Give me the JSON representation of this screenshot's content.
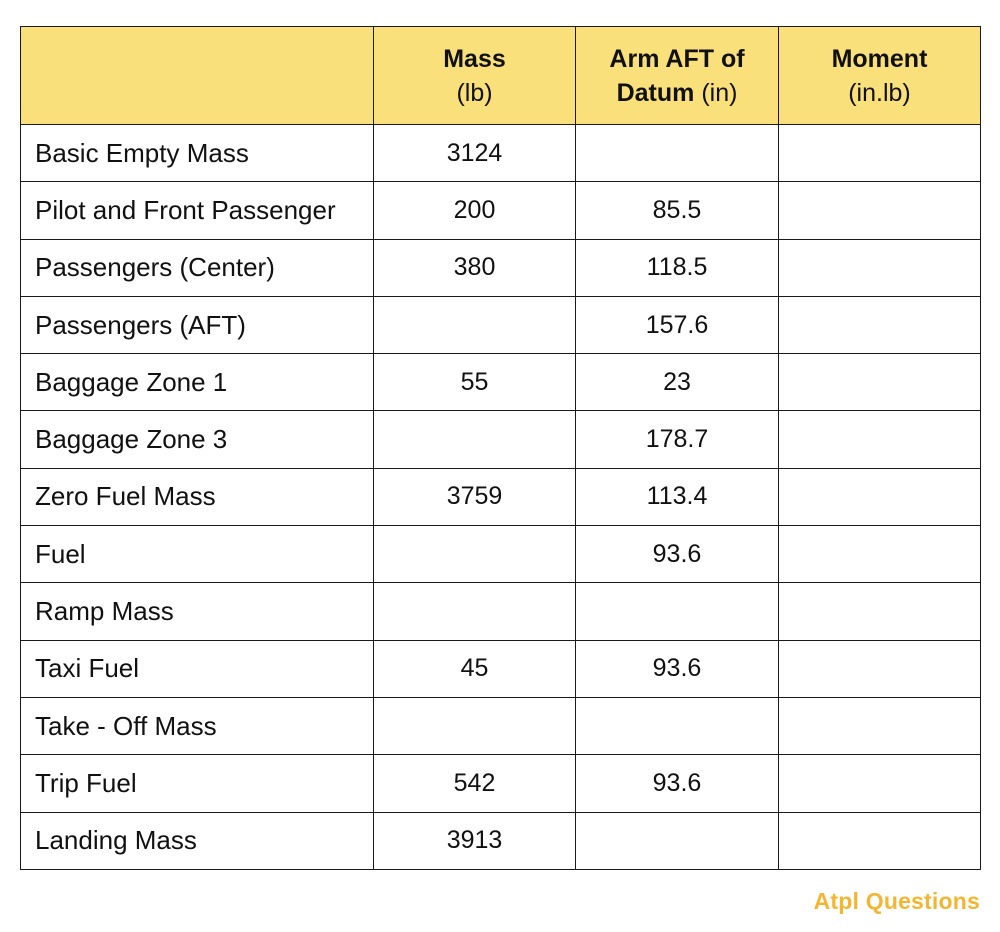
{
  "table": {
    "headers": [
      {
        "bold": "",
        "normal": ""
      },
      {
        "bold": "Mass",
        "normal": "(lb)"
      },
      {
        "bold": "Arm AFT of Datum",
        "normal": "(in)"
      },
      {
        "bold": "Moment",
        "normal": "(in.lb)"
      }
    ],
    "rows": [
      {
        "label": "Basic Empty Mass",
        "mass": "3124",
        "arm": "",
        "moment": ""
      },
      {
        "label": "Pilot and Front Passenger",
        "mass": "200",
        "arm": "85.5",
        "moment": ""
      },
      {
        "label": "Passengers (Center)",
        "mass": "380",
        "arm": "118.5",
        "moment": ""
      },
      {
        "label": "Passengers (AFT)",
        "mass": "",
        "arm": "157.6",
        "moment": ""
      },
      {
        "label": "Baggage Zone 1",
        "mass": "55",
        "arm": "23",
        "moment": ""
      },
      {
        "label": "Baggage Zone 3",
        "mass": "",
        "arm": "178.7",
        "moment": ""
      },
      {
        "label": "Zero Fuel Mass",
        "mass": "3759",
        "arm": "113.4",
        "moment": ""
      },
      {
        "label": "Fuel",
        "mass": "",
        "arm": "93.6",
        "moment": ""
      },
      {
        "label": "Ramp Mass",
        "mass": "",
        "arm": "",
        "moment": ""
      },
      {
        "label": "Taxi Fuel",
        "mass": "45",
        "arm": "93.6",
        "moment": ""
      },
      {
        "label": "Take - Off Mass",
        "mass": "",
        "arm": "",
        "moment": ""
      },
      {
        "label": "Trip Fuel",
        "mass": "542",
        "arm": "93.6",
        "moment": ""
      },
      {
        "label": "Landing Mass",
        "mass": "3913",
        "arm": "",
        "moment": ""
      }
    ]
  },
  "branding": {
    "logo_text": "Atpl Questions"
  },
  "colors": {
    "header_bg": "#f9e07a",
    "logo": "#f2b632",
    "border": "#1a1a1a"
  }
}
